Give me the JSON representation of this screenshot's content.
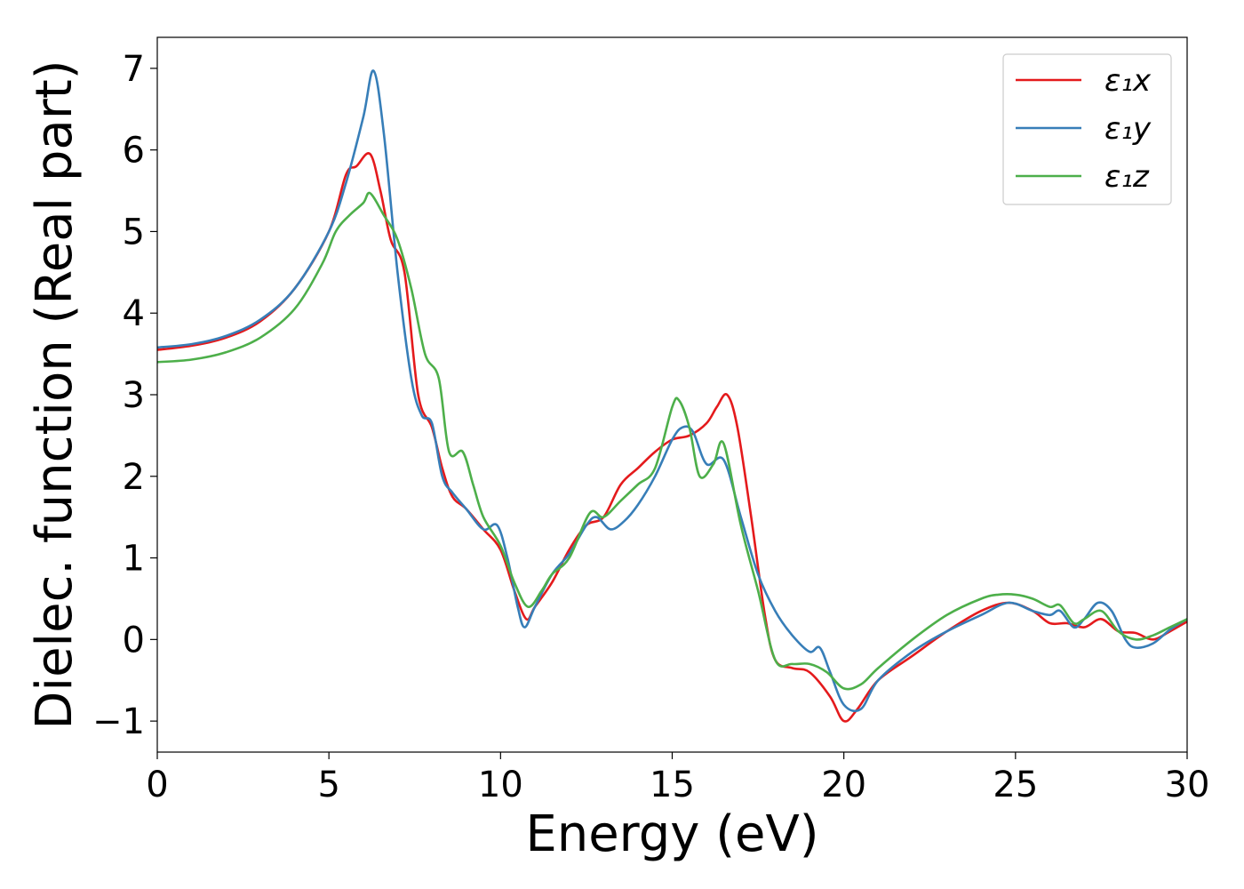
{
  "chart_data": {
    "type": "line",
    "title": "",
    "xlabel": "Energy (eV)",
    "ylabel": "Dielec. function (Real part)",
    "xlim": [
      0,
      30
    ],
    "ylim": [
      -1.38,
      7.38
    ],
    "xticks": [
      0,
      5,
      10,
      15,
      20,
      25,
      30
    ],
    "xtick_labels": [
      "0",
      "5",
      "10",
      "15",
      "20",
      "25",
      "30"
    ],
    "yticks": [
      -1,
      0,
      1,
      2,
      3,
      4,
      5,
      6,
      7
    ],
    "ytick_labels": [
      "−1",
      "0",
      "1",
      "2",
      "3",
      "4",
      "5",
      "6",
      "7"
    ],
    "grid": false,
    "legend_position": "top-right",
    "series": [
      {
        "name": "ε₁x",
        "color": "#e41a1c",
        "points": [
          [
            0,
            3.55
          ],
          [
            1,
            3.6
          ],
          [
            2,
            3.7
          ],
          [
            3,
            3.9
          ],
          [
            4,
            4.3
          ],
          [
            5,
            5.0
          ],
          [
            5.5,
            5.7
          ],
          [
            5.8,
            5.8
          ],
          [
            6.2,
            5.95
          ],
          [
            6.5,
            5.5
          ],
          [
            6.8,
            4.9
          ],
          [
            7.2,
            4.5
          ],
          [
            7.6,
            3.0
          ],
          [
            8.0,
            2.6
          ],
          [
            8.3,
            2.1
          ],
          [
            8.6,
            1.75
          ],
          [
            9.0,
            1.6
          ],
          [
            9.5,
            1.35
          ],
          [
            10.0,
            1.1
          ],
          [
            10.4,
            0.6
          ],
          [
            10.75,
            0.25
          ],
          [
            11.0,
            0.4
          ],
          [
            11.5,
            0.7
          ],
          [
            12.0,
            1.1
          ],
          [
            12.5,
            1.4
          ],
          [
            13.0,
            1.5
          ],
          [
            13.5,
            1.9
          ],
          [
            14.0,
            2.1
          ],
          [
            14.5,
            2.3
          ],
          [
            15.0,
            2.45
          ],
          [
            15.5,
            2.5
          ],
          [
            16.0,
            2.65
          ],
          [
            16.3,
            2.85
          ],
          [
            16.6,
            3.0
          ],
          [
            16.9,
            2.6
          ],
          [
            17.3,
            1.5
          ],
          [
            17.7,
            0.3
          ],
          [
            18.0,
            -0.25
          ],
          [
            18.5,
            -0.35
          ],
          [
            19.0,
            -0.4
          ],
          [
            19.6,
            -0.7
          ],
          [
            20.0,
            -1.0
          ],
          [
            20.4,
            -0.85
          ],
          [
            21.0,
            -0.5
          ],
          [
            22.0,
            -0.2
          ],
          [
            23.0,
            0.1
          ],
          [
            24.0,
            0.35
          ],
          [
            24.8,
            0.45
          ],
          [
            25.5,
            0.35
          ],
          [
            26.0,
            0.2
          ],
          [
            26.5,
            0.2
          ],
          [
            27.0,
            0.15
          ],
          [
            27.5,
            0.25
          ],
          [
            28.0,
            0.1
          ],
          [
            28.5,
            0.08
          ],
          [
            29.0,
            0.0
          ],
          [
            29.5,
            0.1
          ],
          [
            30.0,
            0.22
          ]
        ]
      },
      {
        "name": "ε₁y",
        "color": "#377eb8",
        "points": [
          [
            0,
            3.58
          ],
          [
            1,
            3.62
          ],
          [
            2,
            3.72
          ],
          [
            3,
            3.92
          ],
          [
            4,
            4.3
          ],
          [
            5,
            5.0
          ],
          [
            5.5,
            5.6
          ],
          [
            6.0,
            6.4
          ],
          [
            6.3,
            6.97
          ],
          [
            6.6,
            6.2
          ],
          [
            7.0,
            4.5
          ],
          [
            7.4,
            3.2
          ],
          [
            7.7,
            2.75
          ],
          [
            8.0,
            2.65
          ],
          [
            8.3,
            2.0
          ],
          [
            8.6,
            1.8
          ],
          [
            9.0,
            1.6
          ],
          [
            9.5,
            1.35
          ],
          [
            9.9,
            1.4
          ],
          [
            10.2,
            1.0
          ],
          [
            10.5,
            0.4
          ],
          [
            10.7,
            0.15
          ],
          [
            11.0,
            0.4
          ],
          [
            11.5,
            0.8
          ],
          [
            12.0,
            1.05
          ],
          [
            12.5,
            1.4
          ],
          [
            12.8,
            1.5
          ],
          [
            13.2,
            1.35
          ],
          [
            13.6,
            1.45
          ],
          [
            14.0,
            1.65
          ],
          [
            14.5,
            2.0
          ],
          [
            15.0,
            2.45
          ],
          [
            15.3,
            2.6
          ],
          [
            15.6,
            2.55
          ],
          [
            16.0,
            2.15
          ],
          [
            16.5,
            2.2
          ],
          [
            17.0,
            1.5
          ],
          [
            17.5,
            0.8
          ],
          [
            18.0,
            0.35
          ],
          [
            18.5,
            0.05
          ],
          [
            19.0,
            -0.15
          ],
          [
            19.3,
            -0.1
          ],
          [
            19.6,
            -0.4
          ],
          [
            20.0,
            -0.8
          ],
          [
            20.5,
            -0.85
          ],
          [
            21.0,
            -0.5
          ],
          [
            22.0,
            -0.15
          ],
          [
            23.0,
            0.1
          ],
          [
            24.0,
            0.3
          ],
          [
            24.8,
            0.45
          ],
          [
            25.5,
            0.35
          ],
          [
            26.0,
            0.3
          ],
          [
            26.3,
            0.35
          ],
          [
            26.7,
            0.15
          ],
          [
            27.0,
            0.25
          ],
          [
            27.4,
            0.45
          ],
          [
            27.8,
            0.35
          ],
          [
            28.2,
            0.0
          ],
          [
            28.5,
            -0.1
          ],
          [
            29.0,
            -0.05
          ],
          [
            29.5,
            0.12
          ],
          [
            30.0,
            0.25
          ]
        ]
      },
      {
        "name": "ε₁z",
        "color": "#4daf4a",
        "points": [
          [
            0,
            3.4
          ],
          [
            1,
            3.43
          ],
          [
            2,
            3.52
          ],
          [
            3,
            3.7
          ],
          [
            4,
            4.05
          ],
          [
            4.8,
            4.6
          ],
          [
            5.2,
            5.0
          ],
          [
            5.6,
            5.2
          ],
          [
            6.0,
            5.35
          ],
          [
            6.2,
            5.47
          ],
          [
            6.6,
            5.2
          ],
          [
            7.0,
            4.9
          ],
          [
            7.4,
            4.3
          ],
          [
            7.8,
            3.5
          ],
          [
            8.2,
            3.2
          ],
          [
            8.5,
            2.3
          ],
          [
            8.9,
            2.3
          ],
          [
            9.2,
            1.9
          ],
          [
            9.5,
            1.5
          ],
          [
            10.0,
            1.15
          ],
          [
            10.4,
            0.7
          ],
          [
            10.8,
            0.4
          ],
          [
            11.2,
            0.6
          ],
          [
            11.5,
            0.8
          ],
          [
            12.0,
            1.0
          ],
          [
            12.6,
            1.55
          ],
          [
            13.0,
            1.5
          ],
          [
            13.5,
            1.7
          ],
          [
            14.0,
            1.9
          ],
          [
            14.5,
            2.1
          ],
          [
            15.0,
            2.85
          ],
          [
            15.2,
            2.93
          ],
          [
            15.5,
            2.6
          ],
          [
            15.8,
            2.0
          ],
          [
            16.2,
            2.15
          ],
          [
            16.5,
            2.4
          ],
          [
            17.0,
            1.4
          ],
          [
            17.5,
            0.6
          ],
          [
            18.0,
            -0.25
          ],
          [
            18.5,
            -0.3
          ],
          [
            19.0,
            -0.3
          ],
          [
            19.5,
            -0.4
          ],
          [
            20.0,
            -0.6
          ],
          [
            20.5,
            -0.55
          ],
          [
            21.0,
            -0.35
          ],
          [
            22.0,
            0.0
          ],
          [
            23.0,
            0.3
          ],
          [
            24.0,
            0.5
          ],
          [
            24.5,
            0.55
          ],
          [
            25.0,
            0.55
          ],
          [
            25.5,
            0.5
          ],
          [
            26.0,
            0.4
          ],
          [
            26.3,
            0.42
          ],
          [
            26.7,
            0.2
          ],
          [
            27.0,
            0.25
          ],
          [
            27.5,
            0.35
          ],
          [
            28.0,
            0.1
          ],
          [
            28.5,
            0.0
          ],
          [
            29.0,
            0.05
          ],
          [
            29.5,
            0.15
          ],
          [
            30.0,
            0.25
          ]
        ]
      }
    ]
  }
}
